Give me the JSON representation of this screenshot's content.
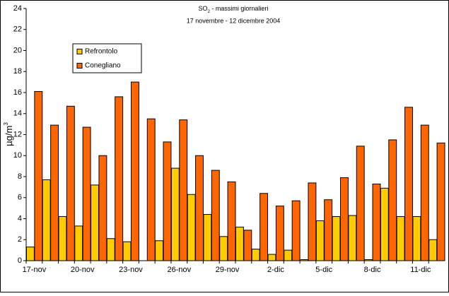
{
  "chart_data": {
    "type": "bar",
    "title": [
      "SO",
      "2",
      " - massimi giornalieri"
    ],
    "subtitle": "17 novembre - 12 dicembre 2004",
    "y_label": [
      "µg/m",
      "3"
    ],
    "categories": [
      "17-nov",
      null,
      null,
      "20-nov",
      null,
      null,
      "23-nov",
      null,
      null,
      "26-nov",
      null,
      null,
      "29-nov",
      null,
      null,
      "2-dic",
      null,
      null,
      "5-dic",
      null,
      null,
      "8-dic",
      null,
      null,
      "11-dic",
      null
    ],
    "series": [
      {
        "name": "Refrontolo",
        "color": "#ffcc00",
        "values": [
          1.3,
          7.7,
          4.2,
          3.3,
          7.2,
          2.1,
          1.8,
          0,
          1.9,
          8.8,
          6.3,
          4.4,
          2.3,
          3.2,
          1.1,
          0.6,
          1.0,
          0.1,
          3.8,
          4.2,
          4.3,
          0.1,
          6.9,
          4.2,
          4.2,
          2.0
        ]
      },
      {
        "name": "Conegliano",
        "color": "#ff6600",
        "values": [
          16.1,
          12.9,
          14.7,
          12.7,
          10.0,
          15.6,
          17.0,
          13.5,
          11.3,
          13.4,
          10.0,
          8.6,
          7.5,
          2.9,
          6.4,
          5.2,
          5.7,
          7.4,
          5.8,
          7.9,
          10.9,
          7.3,
          11.5,
          14.6,
          12.9,
          11.2
        ]
      }
    ],
    "ylim": [
      0,
      24
    ],
    "yticks": [
      0,
      2,
      4,
      6,
      8,
      10,
      12,
      14,
      16,
      18,
      20,
      22,
      24
    ],
    "grid": false,
    "legend": "top-left"
  }
}
